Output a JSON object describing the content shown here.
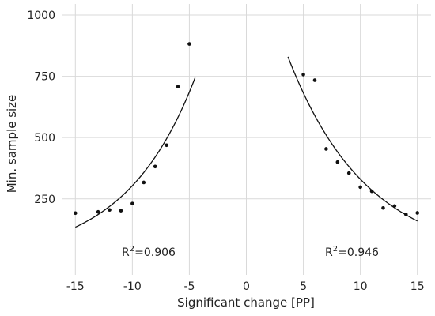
{
  "chart_data": {
    "type": "scatter",
    "title": "",
    "xlabel": "Significant change [PP]",
    "ylabel": "Min. sample size",
    "xlim": [
      -16.2,
      16.2
    ],
    "ylim": [
      -60,
      1045
    ],
    "xticks": [
      -15,
      -10,
      -5,
      0,
      5,
      10,
      15
    ],
    "yticks": [
      250,
      500,
      750,
      1000
    ],
    "grid": true,
    "series": [
      {
        "side": "negative",
        "points": [
          {
            "x": -15,
            "y": 192
          },
          {
            "x": -13,
            "y": 197
          },
          {
            "x": -12,
            "y": 205
          },
          {
            "x": -11,
            "y": 202
          },
          {
            "x": -10,
            "y": 231
          },
          {
            "x": -9,
            "y": 317
          },
          {
            "x": -8,
            "y": 382
          },
          {
            "x": -7,
            "y": 469
          },
          {
            "x": -6,
            "y": 708
          },
          {
            "x": -5,
            "y": 882
          }
        ],
        "fit": {
          "x_range": [
            -15,
            -4.5
          ],
          "r2_label": "R",
          "r2_sup": "2",
          "r2_value": "=0.906"
        }
      },
      {
        "side": "positive",
        "points": [
          {
            "x": 5,
            "y": 757
          },
          {
            "x": 6,
            "y": 734
          },
          {
            "x": 7,
            "y": 454
          },
          {
            "x": 8,
            "y": 400
          },
          {
            "x": 9,
            "y": 355
          },
          {
            "x": 10,
            "y": 298
          },
          {
            "x": 11,
            "y": 281
          },
          {
            "x": 12,
            "y": 213
          },
          {
            "x": 13,
            "y": 221
          },
          {
            "x": 14,
            "y": 187
          },
          {
            "x": 15,
            "y": 193
          }
        ],
        "fit": {
          "x_range": [
            3.65,
            15
          ],
          "r2_label": "R",
          "r2_sup": "2",
          "r2_value": "=0.946"
        }
      }
    ]
  }
}
